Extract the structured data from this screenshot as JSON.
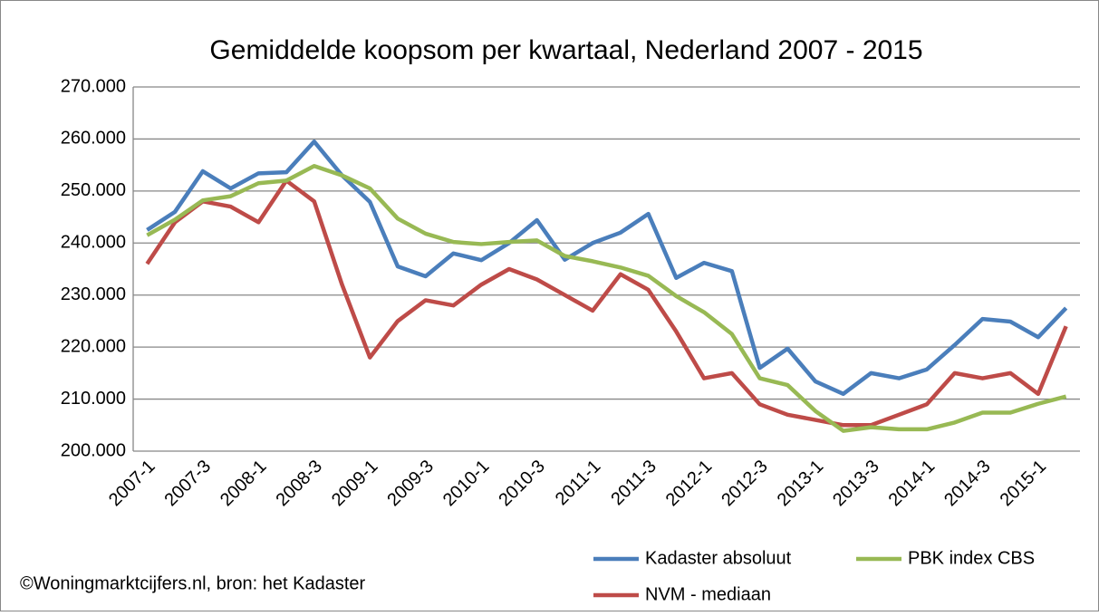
{
  "chart_data": {
    "type": "line",
    "title": "Gemiddelde koopsom per kwartaal, Nederland 2007 - 2015",
    "annotation": "©Woningmarktcijfers.nl, bron: het Kadaster",
    "categories": [
      "2007-1",
      null,
      "2007-3",
      null,
      "2008-1",
      null,
      "2008-3",
      null,
      "2009-1",
      null,
      "2009-3",
      null,
      "2010-1",
      null,
      "2010-3",
      null,
      "2011-1",
      null,
      "2011-3",
      null,
      "2012-1",
      null,
      "2012-3",
      null,
      "2013-1",
      null,
      "2013-3",
      null,
      "2014-1",
      null,
      "2014-3",
      null,
      "2015-1",
      null
    ],
    "series": [
      {
        "name": "Kadaster absoluut",
        "color": "#4a7ebb",
        "values": [
          242500,
          246000,
          253800,
          250500,
          253400,
          253600,
          259500,
          253000,
          247900,
          235500,
          233600,
          238000,
          236700,
          240000,
          244400,
          236800,
          240000,
          242000,
          245600,
          233300,
          236200,
          234600,
          216000,
          219700,
          213400,
          211000,
          215000,
          214000,
          215700,
          220400,
          225400,
          224900,
          221900,
          227500
        ]
      },
      {
        "name": "NVM - mediaan",
        "color": "#be4b48",
        "values": [
          236000,
          244000,
          248000,
          247000,
          244000,
          252000,
          248000,
          232000,
          218000,
          225000,
          229000,
          228000,
          232000,
          235000,
          233000,
          230000,
          227000,
          234000,
          231000,
          223000,
          214000,
          215000,
          209000,
          207000,
          206000,
          205000,
          205000,
          207000,
          209000,
          215000,
          214000,
          215000,
          211000,
          224000
        ]
      },
      {
        "name": "PBK index CBS",
        "color": "#98b954",
        "values": [
          241500,
          244500,
          248200,
          249000,
          251500,
          252000,
          254800,
          253000,
          250500,
          244700,
          241800,
          240200,
          239800,
          240200,
          240500,
          237500,
          236500,
          235300,
          233700,
          229800,
          226700,
          222500,
          214000,
          212700,
          207700,
          203900,
          204600,
          204200,
          204200,
          205500,
          207400,
          207400,
          209100,
          210500
        ]
      }
    ],
    "ylim": [
      200000,
      270000
    ],
    "yticks": [
      {
        "value": 200000,
        "label": "200.000"
      },
      {
        "value": 210000,
        "label": "210.000"
      },
      {
        "value": 220000,
        "label": "220.000"
      },
      {
        "value": 230000,
        "label": "230.000"
      },
      {
        "value": 240000,
        "label": "240.000"
      },
      {
        "value": 250000,
        "label": "250.000"
      },
      {
        "value": 260000,
        "label": "260.000"
      },
      {
        "value": 270000,
        "label": "270.000"
      }
    ],
    "grid": true
  }
}
